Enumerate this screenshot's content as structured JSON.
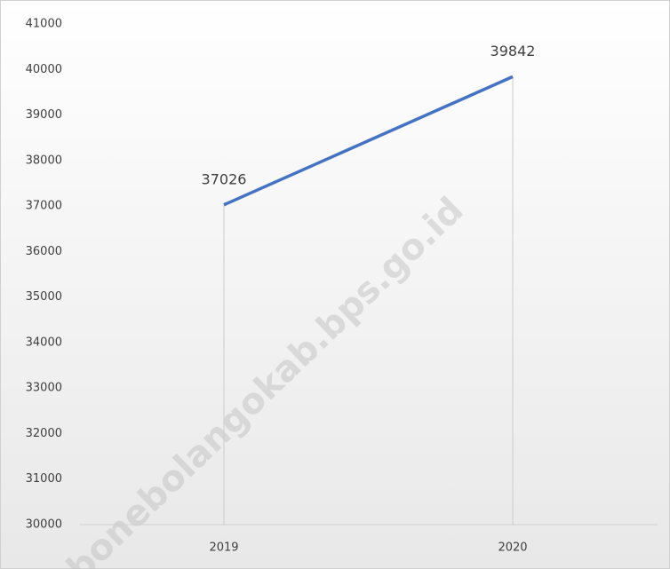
{
  "chart_data": {
    "type": "line",
    "categories": [
      "2019",
      "2020"
    ],
    "values": [
      37026,
      39842
    ],
    "color": "#4472c4",
    "ylim": [
      30000,
      41000
    ],
    "yticks": [
      30000,
      31000,
      32000,
      33000,
      34000,
      35000,
      36000,
      37000,
      38000,
      39000,
      40000,
      41000
    ],
    "grid": false,
    "drop_lines": true,
    "watermark": "bonebolangokab.bps.go.id"
  }
}
